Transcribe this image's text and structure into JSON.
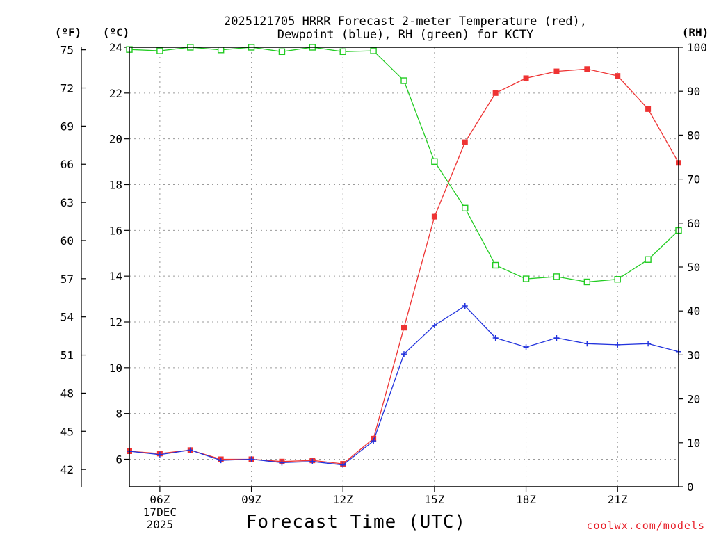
{
  "chart_data": {
    "type": "line",
    "title_line1": "2025121705 HRRR Forecast 2-meter Temperature (red),",
    "title_line2": "Dewpoint (blue), RH (green) for KCTY",
    "xlabel": "Forecast Time (UTC)",
    "credit": "coolwx.com/models",
    "units": {
      "fahrenheit": "(ºF)",
      "celsius": "(ºC)",
      "rh": "(RH)"
    },
    "x_hours": [
      5,
      6,
      7,
      8,
      9,
      10,
      11,
      12,
      13,
      14,
      15,
      16,
      17,
      18,
      19,
      20,
      21,
      22,
      23
    ],
    "xlim": [
      5,
      23
    ],
    "x_ticks": [
      {
        "hour": 6,
        "label": "06Z",
        "sub1": "17DEC",
        "sub2": "2025"
      },
      {
        "hour": 9,
        "label": "09Z"
      },
      {
        "hour": 12,
        "label": "12Z"
      },
      {
        "hour": 15,
        "label": "15Z"
      },
      {
        "hour": 18,
        "label": "18Z"
      },
      {
        "hour": 21,
        "label": "21Z"
      }
    ],
    "ylim_c": [
      4.8,
      24
    ],
    "y_ticks_c": [
      6,
      8,
      10,
      12,
      14,
      16,
      18,
      20,
      22,
      24
    ],
    "y_ticks_f": [
      42,
      45,
      48,
      51,
      54,
      57,
      60,
      63,
      66,
      69,
      72,
      75
    ],
    "ylim_rh": [
      0,
      100
    ],
    "y_ticks_rh": [
      0,
      10,
      20,
      30,
      40,
      50,
      60,
      70,
      80,
      90,
      100
    ],
    "series": [
      {
        "name": "Temperature",
        "axis": "celsius",
        "color": "#ee3333",
        "marker": "filled-square",
        "values": [
          6.35,
          6.25,
          6.4,
          6.0,
          6.0,
          5.9,
          5.95,
          5.8,
          6.9,
          11.75,
          16.6,
          19.85,
          22.0,
          22.65,
          22.95,
          23.05,
          22.75,
          21.3,
          18.95
        ]
      },
      {
        "name": "Dewpoint",
        "axis": "celsius",
        "color": "#2233dd",
        "marker": "plus",
        "values": [
          6.35,
          6.2,
          6.4,
          5.95,
          6.0,
          5.85,
          5.9,
          5.75,
          6.8,
          10.6,
          11.85,
          12.7,
          11.3,
          10.9,
          11.3,
          11.05,
          11.0,
          11.05,
          10.7
        ]
      },
      {
        "name": "RH",
        "axis": "rh",
        "color": "#22cc22",
        "marker": "open-square",
        "values": [
          99.5,
          99.2,
          100,
          99.4,
          100,
          99.0,
          100,
          99.0,
          99.2,
          92.4,
          74.0,
          63.4,
          50.4,
          47.3,
          47.8,
          46.6,
          47.2,
          51.7,
          58.3
        ]
      }
    ]
  }
}
